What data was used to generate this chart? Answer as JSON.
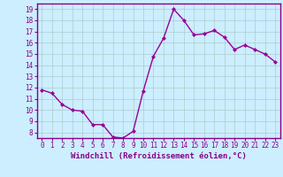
{
  "x": [
    0,
    1,
    2,
    3,
    4,
    5,
    6,
    7,
    8,
    9,
    10,
    11,
    12,
    13,
    14,
    15,
    16,
    17,
    18,
    19,
    20,
    21,
    22,
    23
  ],
  "y": [
    11.8,
    11.5,
    10.5,
    10.0,
    9.9,
    8.7,
    8.7,
    7.6,
    7.5,
    8.1,
    11.7,
    14.8,
    16.4,
    19.0,
    18.0,
    16.7,
    16.8,
    17.1,
    16.5,
    15.4,
    15.8,
    15.4,
    15.0,
    14.3
  ],
  "line_color": "#990099",
  "marker": "D",
  "marker_size": 2.0,
  "bg_color": "#cceeff",
  "grid_color": "#aacccc",
  "xlabel": "Windchill (Refroidissement éolien,°C)",
  "xlim": [
    -0.5,
    23.5
  ],
  "ylim": [
    7.5,
    19.5
  ],
  "yticks": [
    8,
    9,
    10,
    11,
    12,
    13,
    14,
    15,
    16,
    17,
    18,
    19
  ],
  "xticks": [
    0,
    1,
    2,
    3,
    4,
    5,
    6,
    7,
    8,
    9,
    10,
    11,
    12,
    13,
    14,
    15,
    16,
    17,
    18,
    19,
    20,
    21,
    22,
    23
  ],
  "tick_fontsize": 5.5,
  "xlabel_fontsize": 6.5,
  "linewidth": 1.0,
  "line_and_label_color": "#880088",
  "spine_color": "#880088"
}
